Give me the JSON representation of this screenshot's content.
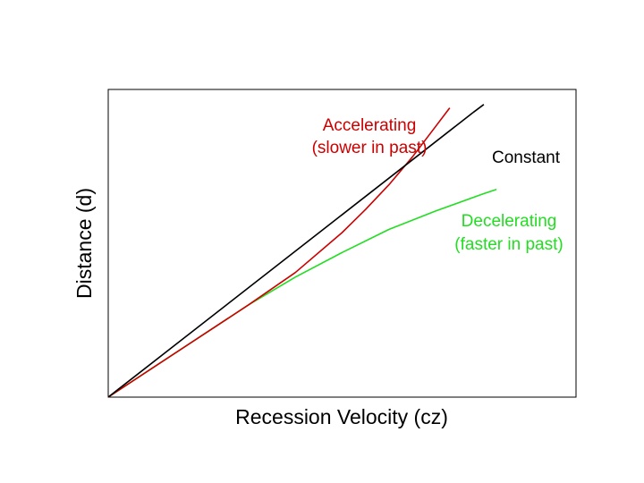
{
  "chart_data": {
    "type": "line",
    "title": "",
    "xlabel": "Recession Velocity (cz)",
    "ylabel": "Distance (d)",
    "xlim": [
      0,
      1
    ],
    "ylim": [
      0,
      1
    ],
    "grid": false,
    "legend": "none",
    "series": [
      {
        "key": "accelerating",
        "color": "#cc0000",
        "annotation": [
          "Accelerating",
          "(slower in past)"
        ],
        "x": [
          0.0,
          0.1,
          0.2,
          0.3,
          0.4,
          0.5,
          0.55,
          0.6,
          0.65,
          0.7,
          0.73
        ],
        "y": [
          0.0,
          0.1,
          0.2,
          0.3,
          0.405,
          0.535,
          0.61,
          0.69,
          0.78,
          0.88,
          0.94
        ]
      },
      {
        "key": "constant",
        "color": "#000000",
        "annotation": [
          "Constant"
        ],
        "x": [
          0.0,
          0.78
        ],
        "y": [
          0.0,
          0.925
        ]
      },
      {
        "key": "decelerating",
        "color": "#22dd22",
        "annotation": [
          "Decelerating",
          "(faster in past)"
        ],
        "x": [
          0.0,
          0.1,
          0.2,
          0.3,
          0.4,
          0.5,
          0.6,
          0.7,
          0.8,
          0.83
        ],
        "y": [
          0.0,
          0.1,
          0.2,
          0.3,
          0.39,
          0.47,
          0.545,
          0.605,
          0.66,
          0.675
        ]
      }
    ]
  }
}
